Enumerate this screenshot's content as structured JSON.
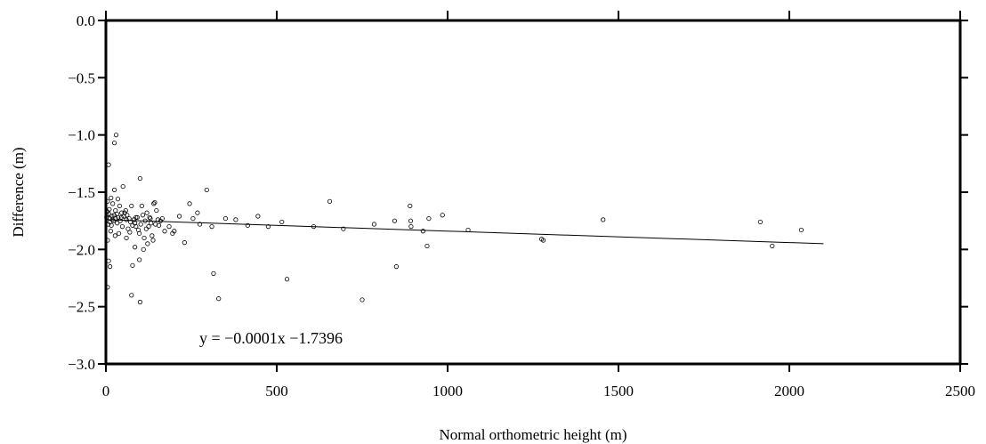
{
  "chart_data": {
    "type": "scatter",
    "title": "",
    "xlabel": "Normal orthometric height (m)",
    "ylabel": "Difference (m)",
    "xlim": [
      0,
      2500
    ],
    "ylim": [
      -3.0,
      0.0
    ],
    "xticks": [
      0,
      500,
      1000,
      1500,
      2000,
      2500
    ],
    "xtick_labels": [
      "0",
      "500",
      "1000",
      "1500",
      "2000",
      "2500"
    ],
    "yticks": [
      0.0,
      -0.5,
      -1.0,
      -1.5,
      -2.0,
      -2.5,
      -3.0
    ],
    "ytick_labels": [
      "0.0",
      "−0.5",
      "−1.0",
      "−1.5",
      "−2.0",
      "−2.5",
      "−3.0"
    ],
    "grid": false,
    "marker": "open-circle",
    "annotation": "y = −0.0001x −1.7396",
    "trendline": {
      "x": [
        0,
        2100
      ],
      "y": [
        -1.74,
        -1.95
      ]
    },
    "points": [
      [
        30,
        -1.0
      ],
      [
        25,
        -1.07
      ],
      [
        8,
        -1.26
      ],
      [
        100,
        -1.38
      ],
      [
        295,
        -1.48
      ],
      [
        50,
        -1.45
      ],
      [
        25,
        -1.48
      ],
      [
        15,
        -1.55
      ],
      [
        35,
        -1.56
      ],
      [
        5,
        -1.58
      ],
      [
        20,
        -1.6
      ],
      [
        40,
        -1.62
      ],
      [
        10,
        -1.65
      ],
      [
        28,
        -1.66
      ],
      [
        55,
        -1.68
      ],
      [
        3,
        -1.7
      ],
      [
        18,
        -1.71
      ],
      [
        45,
        -1.72
      ],
      [
        12,
        -1.73
      ],
      [
        60,
        -1.74
      ],
      [
        22,
        -1.75
      ],
      [
        33,
        -1.77
      ],
      [
        7,
        -1.78
      ],
      [
        48,
        -1.8
      ],
      [
        65,
        -1.82
      ],
      [
        14,
        -1.84
      ],
      [
        38,
        -1.86
      ],
      [
        27,
        -1.88
      ],
      [
        5,
        -1.92
      ],
      [
        2,
        -1.72
      ],
      [
        4,
        -1.67
      ],
      [
        9,
        -1.69
      ],
      [
        11,
        -1.76
      ],
      [
        16,
        -1.79
      ],
      [
        19,
        -1.74
      ],
      [
        24,
        -1.7
      ],
      [
        29,
        -1.73
      ],
      [
        32,
        -1.69
      ],
      [
        36,
        -1.72
      ],
      [
        42,
        -1.75
      ],
      [
        46,
        -1.68
      ],
      [
        52,
        -1.71
      ],
      [
        58,
        -1.66
      ],
      [
        62,
        -1.7
      ],
      [
        68,
        -1.73
      ],
      [
        72,
        -1.76
      ],
      [
        75,
        -1.62
      ],
      [
        78,
        -1.79
      ],
      [
        82,
        -1.74
      ],
      [
        85,
        -1.77
      ],
      [
        88,
        -1.8
      ],
      [
        92,
        -1.72
      ],
      [
        95,
        -1.83
      ],
      [
        98,
        -1.86
      ],
      [
        102,
        -1.78
      ],
      [
        105,
        -1.62
      ],
      [
        108,
        -1.7
      ],
      [
        112,
        -1.9
      ],
      [
        115,
        -1.75
      ],
      [
        118,
        -1.82
      ],
      [
        122,
        -1.95
      ],
      [
        125,
        -1.8
      ],
      [
        128,
        -1.72
      ],
      [
        132,
        -1.77
      ],
      [
        135,
        -1.88
      ],
      [
        138,
        -1.92
      ],
      [
        140,
        -1.6
      ],
      [
        143,
        -1.59
      ],
      [
        148,
        -1.66
      ],
      [
        152,
        -1.74
      ],
      [
        155,
        -1.79
      ],
      [
        160,
        -1.75
      ],
      [
        165,
        -1.73
      ],
      [
        172,
        -1.84
      ],
      [
        185,
        -1.8
      ],
      [
        195,
        -1.86
      ],
      [
        200,
        -1.84
      ],
      [
        215,
        -1.71
      ],
      [
        230,
        -1.94
      ],
      [
        245,
        -1.6
      ],
      [
        255,
        -1.73
      ],
      [
        268,
        -1.68
      ],
      [
        275,
        -1.78
      ],
      [
        310,
        -1.8
      ],
      [
        350,
        -1.73
      ],
      [
        380,
        -1.74
      ],
      [
        415,
        -1.79
      ],
      [
        445,
        -1.71
      ],
      [
        475,
        -1.8
      ],
      [
        515,
        -1.76
      ],
      [
        608,
        -1.8
      ],
      [
        655,
        -1.58
      ],
      [
        695,
        -1.82
      ],
      [
        785,
        -1.78
      ],
      [
        845,
        -1.75
      ],
      [
        890,
        -1.62
      ],
      [
        892,
        -1.75
      ],
      [
        893,
        -1.8
      ],
      [
        928,
        -1.84
      ],
      [
        945,
        -1.73
      ],
      [
        985,
        -1.7
      ],
      [
        1060,
        -1.83
      ],
      [
        1275,
        -1.91
      ],
      [
        1280,
        -1.92
      ],
      [
        1455,
        -1.74
      ],
      [
        1915,
        -1.76
      ],
      [
        1950,
        -1.97
      ],
      [
        2035,
        -1.83
      ],
      [
        940,
        -1.97
      ],
      [
        850,
        -2.15
      ],
      [
        750,
        -2.44
      ],
      [
        530,
        -2.26
      ],
      [
        330,
        -2.43
      ],
      [
        315,
        -2.21
      ],
      [
        98,
        -2.09
      ],
      [
        100,
        -2.46
      ],
      [
        75,
        -2.4
      ],
      [
        78,
        -2.14
      ],
      [
        12,
        -2.15
      ],
      [
        8,
        -2.1
      ],
      [
        5,
        -2.33
      ],
      [
        88,
        -1.72
      ],
      [
        120,
        -1.68
      ],
      [
        130,
        -1.73
      ],
      [
        145,
        -1.78
      ],
      [
        60,
        -1.9
      ],
      [
        70,
        -1.85
      ],
      [
        85,
        -1.98
      ],
      [
        110,
        -2.0
      ]
    ]
  }
}
